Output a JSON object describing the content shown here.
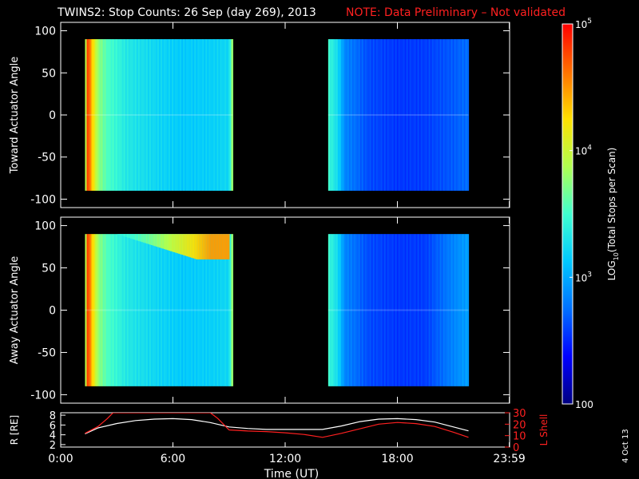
{
  "title": {
    "main": "TWINS2: Stop Counts: 26 Sep (day 269), 2013",
    "note": "NOTE: Data Preliminary – Not validated",
    "note_color": "#ff2020"
  },
  "side_date": "4 Oct 13",
  "colorbar": {
    "label": "LOG10(Total Stops per Scan)",
    "label_parts": [
      "LOG",
      "10",
      "(Total Stops per Scan)"
    ],
    "scale": "log",
    "range": [
      100,
      100000
    ],
    "tick_labels": [
      "10^5",
      "10^4",
      "10^3",
      "100"
    ],
    "tick_values": [
      100000,
      10000,
      1000,
      100
    ],
    "tick_display": [
      [
        "10",
        "5"
      ],
      [
        "10",
        "4"
      ],
      [
        "10",
        "3"
      ],
      [
        "100",
        ""
      ]
    ],
    "colors": [
      "#000080",
      "#0000ff",
      "#0070ff",
      "#00c8ff",
      "#40ffd0",
      "#b0ff50",
      "#ffe000",
      "#ff7000",
      "#ff0000"
    ]
  },
  "x_axis": {
    "label": "Time (UT)",
    "tick_labels": [
      "0:00",
      "6:00",
      "12:00",
      "18:00",
      "23:59"
    ],
    "tick_hours": [
      0,
      6,
      12,
      18,
      23.983
    ],
    "range_hours": [
      0,
      24
    ]
  },
  "chart_data": [
    {
      "type": "heatmap",
      "ylabel": "Toward Actuator Angle",
      "ylim": [
        -110,
        110
      ],
      "y_tick_labels": [
        "100",
        "50",
        "0",
        "-50",
        "-100"
      ],
      "y_ticks": [
        100,
        50,
        0,
        -50,
        -100
      ],
      "angle_range": [
        -90,
        90
      ],
      "segments": [
        {
          "time_range_hours": [
            1.3,
            9.2
          ],
          "profile": [
            [
              1.3,
              1000
            ],
            [
              1.35,
              12000
            ],
            [
              1.45,
              90000
            ],
            [
              1.55,
              40000
            ],
            [
              1.7,
              20000
            ],
            [
              2.0,
              6000
            ],
            [
              2.5,
              3500
            ],
            [
              3.5,
              2200
            ],
            [
              5.0,
              1700
            ],
            [
              6.5,
              1400
            ],
            [
              8.0,
              1500
            ],
            [
              9.0,
              1700
            ],
            [
              9.2,
              8000
            ]
          ]
        },
        {
          "time_range_hours": [
            14.3,
            21.8
          ],
          "profile": [
            [
              14.3,
              3000
            ],
            [
              14.8,
              1800
            ],
            [
              15.2,
              700
            ],
            [
              16.5,
              420
            ],
            [
              18.0,
              360
            ],
            [
              19.5,
              380
            ],
            [
              21.0,
              480
            ],
            [
              21.8,
              560
            ]
          ]
        }
      ]
    },
    {
      "type": "heatmap",
      "ylabel": "Away Actuator Angle",
      "ylim": [
        -110,
        110
      ],
      "y_tick_labels": [
        "100",
        "50",
        "0",
        "-50",
        "-100"
      ],
      "y_ticks": [
        100,
        50,
        0,
        -50,
        -100
      ],
      "angle_range": [
        -90,
        90
      ],
      "segments": [
        {
          "time_range_hours": [
            1.3,
            9.2
          ],
          "profile": [
            [
              1.3,
              1000
            ],
            [
              1.35,
              12000
            ],
            [
              1.45,
              90000
            ],
            [
              1.55,
              40000
            ],
            [
              1.7,
              20000
            ],
            [
              2.0,
              6000
            ],
            [
              2.5,
              3500
            ],
            [
              3.5,
              2200
            ],
            [
              5.0,
              1700
            ],
            [
              6.5,
              1400
            ],
            [
              8.0,
              1500
            ],
            [
              9.0,
              1700
            ],
            [
              9.2,
              8000
            ]
          ],
          "high_angle_enhancement": {
            "angle_range": [
              60,
              90
            ],
            "time_range_hours": [
              3.0,
              9.0
            ],
            "peak_counts": 30000
          }
        },
        {
          "time_range_hours": [
            14.3,
            21.8
          ],
          "profile": [
            [
              14.3,
              3000
            ],
            [
              14.8,
              1800
            ],
            [
              15.2,
              700
            ],
            [
              16.5,
              420
            ],
            [
              18.0,
              360
            ],
            [
              19.5,
              380
            ],
            [
              21.0,
              700
            ],
            [
              21.8,
              900
            ]
          ]
        }
      ]
    },
    {
      "type": "line",
      "ylabel": "R [RE]",
      "y2label": "L Shell",
      "ylim": [
        1.5,
        8.5
      ],
      "y_tick_labels": [
        "8",
        "6",
        "4",
        "2"
      ],
      "y_ticks": [
        8,
        6,
        4,
        2
      ],
      "y2lim": [
        0,
        30
      ],
      "y2_tick_labels": [
        "30",
        "20",
        "10",
        "0"
      ],
      "y2_ticks": [
        30,
        20,
        10,
        0
      ],
      "series": [
        {
          "color": "#ffffff",
          "axis": "left",
          "x": [
            1.3,
            2.0,
            3.0,
            4.0,
            5.0,
            6.0,
            7.0,
            8.0,
            9.0,
            10.0,
            11.0,
            12.0,
            13.0,
            14.0,
            15.0,
            16.0,
            17.0,
            18.0,
            19.0,
            20.0,
            21.0,
            21.8
          ],
          "y": [
            4.2,
            5.4,
            6.3,
            6.9,
            7.2,
            7.3,
            7.1,
            6.5,
            5.6,
            5.3,
            5.1,
            5.1,
            5.1,
            5.1,
            5.8,
            6.7,
            7.2,
            7.3,
            7.1,
            6.6,
            5.6,
            4.8
          ]
        },
        {
          "color": "#ff2020",
          "axis": "right",
          "x": [
            1.3,
            2.0,
            2.5,
            2.8,
            8.0,
            8.4,
            9.0,
            10.0,
            11.0,
            12.0,
            13.0,
            14.0,
            15.0,
            16.0,
            17.0,
            18.0,
            19.0,
            20.0,
            21.0,
            21.8
          ],
          "y": [
            12,
            18,
            25,
            30,
            30,
            25,
            15,
            14,
            13.5,
            12.5,
            11,
            8.5,
            12,
            16,
            20,
            21.5,
            20.5,
            18,
            13,
            8.5
          ]
        }
      ]
    }
  ]
}
